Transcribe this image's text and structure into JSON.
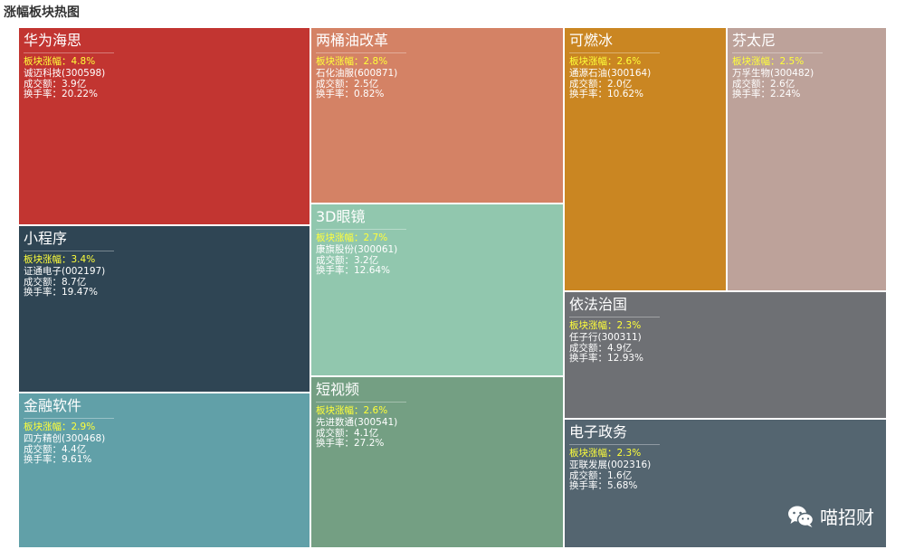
{
  "chart_title": "涨幅板块热图",
  "watermark": {
    "text": "喵招财",
    "icon": "wechat-icon"
  },
  "chart_data": {
    "type": "treemap",
    "title": "涨幅板块热图",
    "labels": {
      "rise_prefix": "板块涨幅：",
      "amount_prefix": "成交额：",
      "turnover_prefix": "换手率："
    },
    "sectors": [
      {
        "name": "华为海思",
        "change": "4.8%",
        "stock": "诚迈科技(300598)",
        "amount": "3.9亿",
        "turnover": "20.22%",
        "color": "#c23531"
      },
      {
        "name": "小程序",
        "change": "3.4%",
        "stock": "证通电子(002197)",
        "amount": "8.7亿",
        "turnover": "19.47%",
        "color": "#2f4554"
      },
      {
        "name": "金融软件",
        "change": "2.9%",
        "stock": "四方精创(300468)",
        "amount": "4.4亿",
        "turnover": "9.61%",
        "color": "#61a0a8"
      },
      {
        "name": "两桶油改革",
        "change": "2.8%",
        "stock": "石化油服(600871)",
        "amount": "2.5亿",
        "turnover": "0.82%",
        "color": "#d48265"
      },
      {
        "name": "3D眼镜",
        "change": "2.7%",
        "stock": "康旗股份(300061)",
        "amount": "3.2亿",
        "turnover": "12.64%",
        "color": "#91c7ae"
      },
      {
        "name": "短视频",
        "change": "2.6%",
        "stock": "先进数通(300541)",
        "amount": "4.1亿",
        "turnover": "27.2%",
        "color": "#749f83"
      },
      {
        "name": "可燃冰",
        "change": "2.6%",
        "stock": "通源石油(300164)",
        "amount": "2.0亿",
        "turnover": "10.62%",
        "color": "#ca8622"
      },
      {
        "name": "芬太尼",
        "change": "2.5%",
        "stock": "万孚生物(300482)",
        "amount": "2.6亿",
        "turnover": "2.24%",
        "color": "#bda29a"
      },
      {
        "name": "依法治国",
        "change": "2.3%",
        "stock": "任子行(300311)",
        "amount": "4.9亿",
        "turnover": "12.93%",
        "color": "#6e7074"
      },
      {
        "name": "电子政务",
        "change": "2.3%",
        "stock": "亚联发展(002316)",
        "amount": "1.6亿",
        "turnover": "5.68%",
        "color": "#546570"
      }
    ]
  }
}
